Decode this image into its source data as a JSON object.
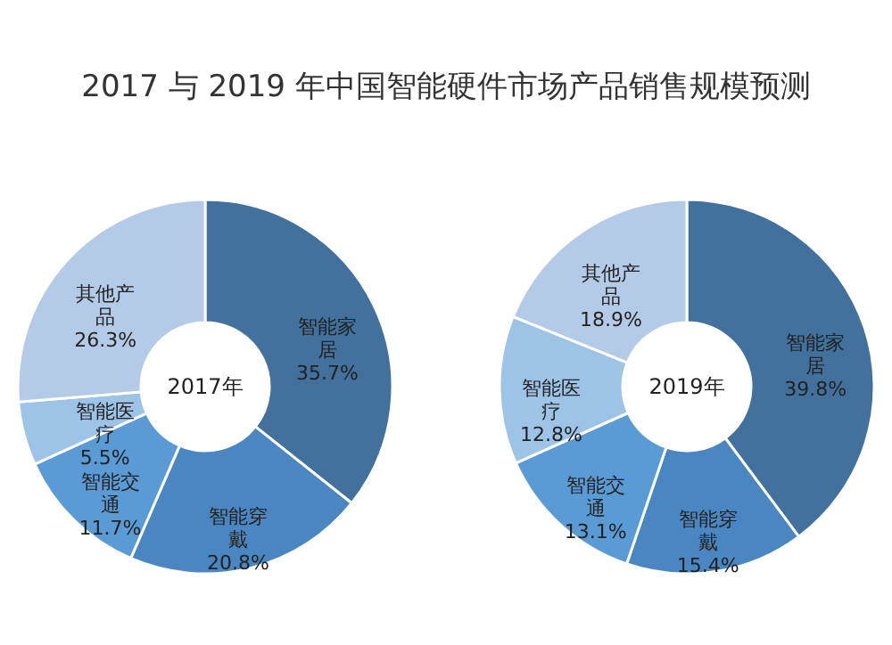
{
  "chart_data": [
    {
      "type": "donut",
      "title": "2017 与 2019 年中国智能硬件市场产品销售规模预测",
      "annotations": [
        "2017年"
      ],
      "categories": [
        "智能家居",
        "智能穿戴",
        "智能交通",
        "智能医疗",
        "其他产品"
      ],
      "values": [
        35.7,
        20.8,
        11.7,
        5.5,
        26.3
      ],
      "value_labels": [
        "35.7%",
        "20.8%",
        "11.7%",
        "5.5%",
        "26.3%"
      ],
      "colors": [
        "#41719c",
        "#4a86c2",
        "#5b9bd5",
        "#9dc3e6",
        "#b4cbe8"
      ]
    },
    {
      "type": "donut",
      "annotations": [
        "2019年"
      ],
      "categories": [
        "智能家居",
        "智能穿戴",
        "智能交通",
        "智能医疗",
        "其他产品"
      ],
      "values": [
        39.8,
        15.4,
        13.1,
        12.8,
        18.9
      ],
      "value_labels": [
        "39.8%",
        "15.4%",
        "13.1%",
        "12.8%",
        "18.9%"
      ],
      "colors": [
        "#41719c",
        "#4a86c2",
        "#5b9bd5",
        "#9dc3e6",
        "#b4cbe8"
      ]
    }
  ]
}
